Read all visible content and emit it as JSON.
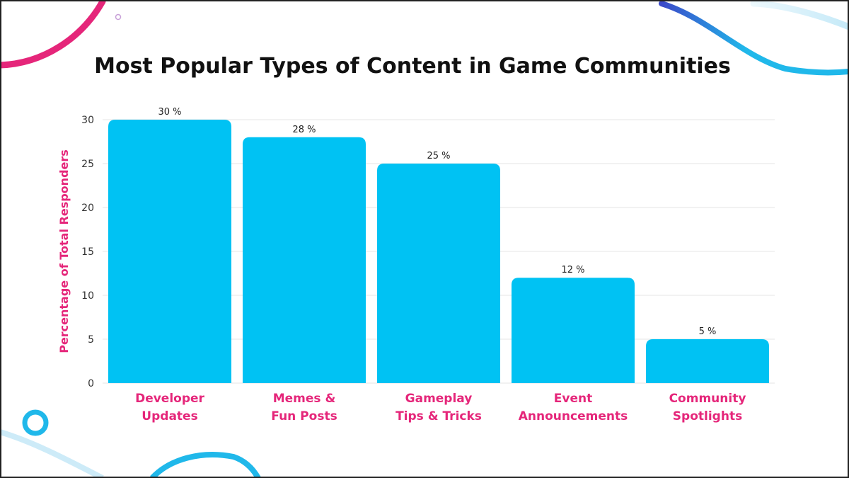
{
  "chart_data": {
    "type": "bar",
    "title": "Most Popular Types of Content in Game Communities",
    "ylabel": "Percentage of Total Responders",
    "xlabel": "",
    "categories": [
      [
        "Developer",
        "Updates"
      ],
      [
        "Memes &",
        "Fun Posts"
      ],
      [
        "Gameplay",
        "Tips & Tricks"
      ],
      [
        "Event",
        "Announcements"
      ],
      [
        "Community",
        "Spotlights"
      ]
    ],
    "values": [
      30,
      28,
      25,
      12,
      5
    ],
    "data_labels": [
      "30 %",
      "28 %",
      "25 %",
      "12 %",
      "5 %"
    ],
    "ylim": [
      0,
      30
    ],
    "yticks": [
      0,
      5,
      10,
      15,
      20,
      25,
      30
    ],
    "grid": true,
    "legend": "none"
  },
  "colors": {
    "bar": "#00c2f3",
    "accent_pink": "#e5267a",
    "accent_blue": "#20b8ea",
    "accent_navy": "#3b49c9",
    "border": "#222222"
  }
}
